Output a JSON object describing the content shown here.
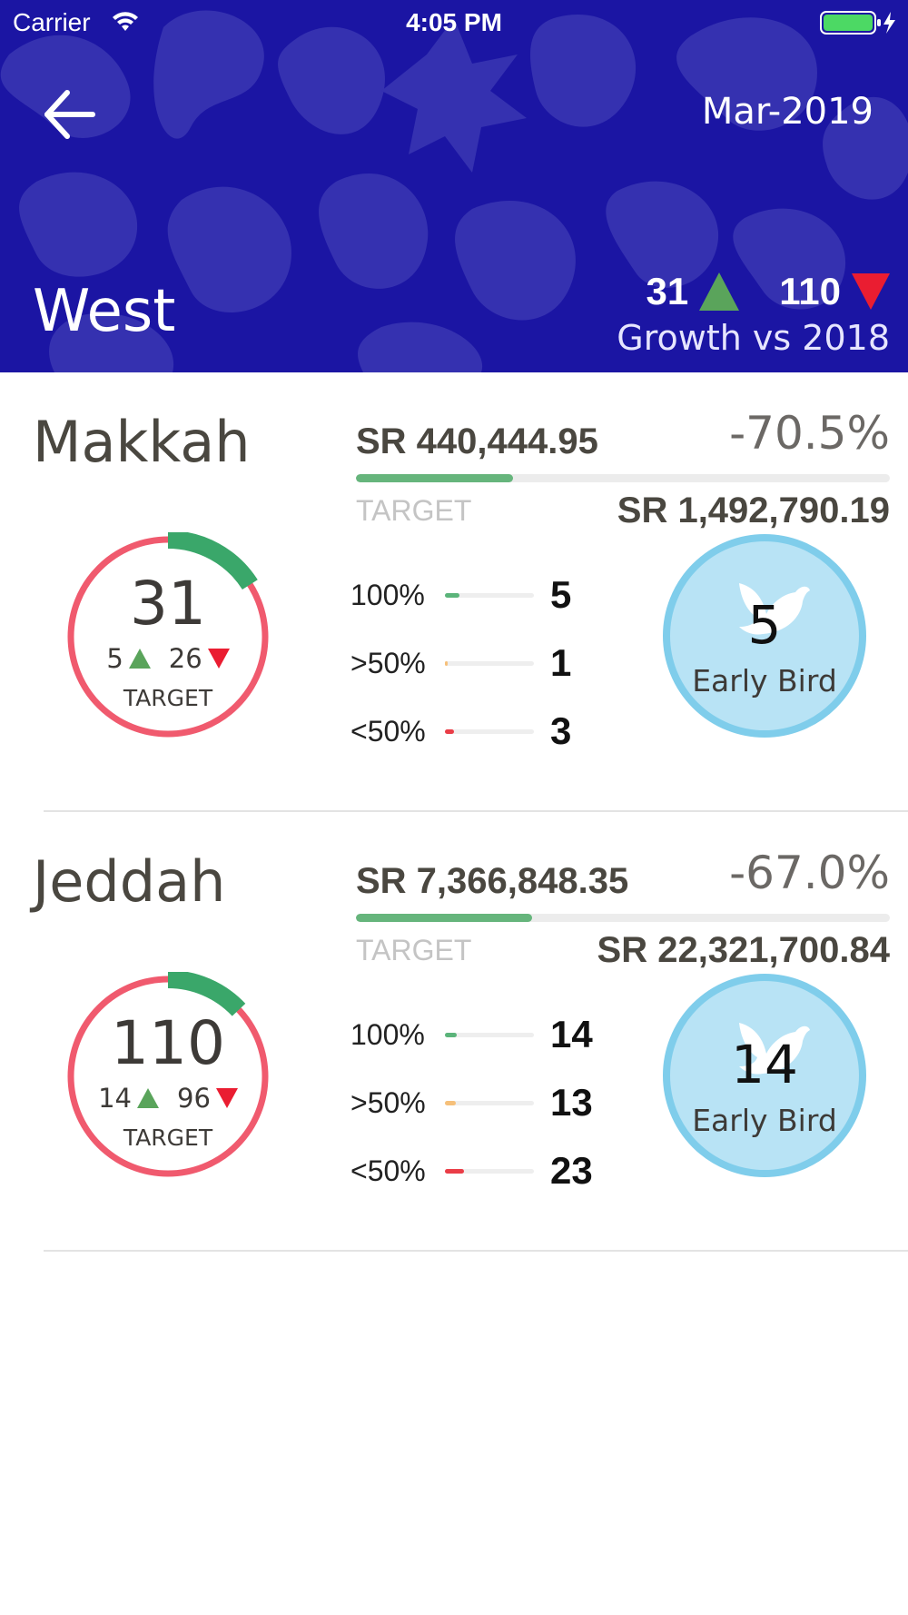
{
  "status_bar": {
    "carrier": "Carrier",
    "time": "4:05 PM"
  },
  "header": {
    "date": "Mar-2019",
    "region": "West",
    "growth_up": "31",
    "growth_down": "110",
    "growth_label": "Growth vs 2018"
  },
  "cities": [
    {
      "name": "Makkah",
      "target_count": "31",
      "up": "5",
      "down": "26",
      "target_caption": "TARGET",
      "ring_fraction": 0.16,
      "sales": "SR 440,444.95",
      "pct": "-70.5%",
      "progress": 0.295,
      "target_label": "TARGET",
      "target_value": "SR 1,492,790.19",
      "tiers": [
        {
          "label": "100%",
          "value": "5",
          "fill": 0.16,
          "color": "#5bb47a"
        },
        {
          "label": ">50%",
          "value": "1",
          "fill": 0.03,
          "color": "#f6c07a"
        },
        {
          "label": "<50%",
          "value": "3",
          "fill": 0.1,
          "color": "#ea3d47"
        }
      ],
      "early_bird_count": "5",
      "early_bird_label": "Early Bird"
    },
    {
      "name": "Jeddah",
      "target_count": "110",
      "up": "14",
      "down": "96",
      "target_caption": "TARGET",
      "ring_fraction": 0.13,
      "sales": "SR 7,366,848.35",
      "pct": "-67.0%",
      "progress": 0.33,
      "target_label": "TARGET",
      "target_value": "SR 22,321,700.84",
      "tiers": [
        {
          "label": "100%",
          "value": "14",
          "fill": 0.13,
          "color": "#5bb47a"
        },
        {
          "label": ">50%",
          "value": "13",
          "fill": 0.12,
          "color": "#f6c07a"
        },
        {
          "label": "<50%",
          "value": "23",
          "fill": 0.21,
          "color": "#ea3d47"
        }
      ],
      "early_bird_count": "14",
      "early_bird_label": "Early Bird"
    }
  ]
}
